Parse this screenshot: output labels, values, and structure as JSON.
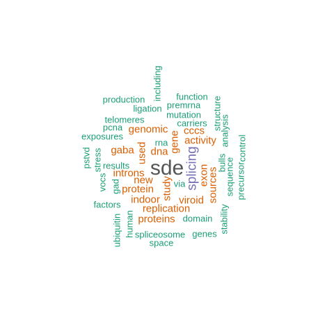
{
  "colors": {
    "top": "#555555",
    "tier1": "#7570B3",
    "tier2": "#D95F02",
    "tier3": "#1B9E77"
  },
  "words": [
    {
      "text": "sde",
      "weight": 4,
      "color": "#555555",
      "rotated": false
    },
    {
      "text": "splicing",
      "weight": 3,
      "color": "#7570B3",
      "rotated": true
    },
    {
      "text": "genomic",
      "weight": 2,
      "color": "#D95F02",
      "rotated": false
    },
    {
      "text": "dna",
      "weight": 2,
      "color": "#D95F02",
      "rotated": false
    },
    {
      "text": "gene",
      "weight": 2,
      "color": "#D95F02",
      "rotated": true
    },
    {
      "text": "used",
      "weight": 2,
      "color": "#D95F02",
      "rotated": true
    },
    {
      "text": "cccs",
      "weight": 2,
      "color": "#D95F02",
      "rotated": false
    },
    {
      "text": "activity",
      "weight": 2,
      "color": "#D95F02",
      "rotated": false
    },
    {
      "text": "gaba",
      "weight": 2,
      "color": "#D95F02",
      "rotated": false
    },
    {
      "text": "introns",
      "weight": 2,
      "color": "#D95F02",
      "rotated": false
    },
    {
      "text": "new",
      "weight": 2,
      "color": "#D95F02",
      "rotated": false
    },
    {
      "text": "protein",
      "weight": 2,
      "color": "#D95F02",
      "rotated": false
    },
    {
      "text": "study",
      "weight": 2,
      "color": "#D95F02",
      "rotated": true
    },
    {
      "text": "exon",
      "weight": 2,
      "color": "#D95F02",
      "rotated": true
    },
    {
      "text": "sources",
      "weight": 2,
      "color": "#D95F02",
      "rotated": true
    },
    {
      "text": "indoor",
      "weight": 2,
      "color": "#D95F02",
      "rotated": false
    },
    {
      "text": "viroid",
      "weight": 2,
      "color": "#D95F02",
      "rotated": false
    },
    {
      "text": "replication",
      "weight": 2,
      "color": "#D95F02",
      "rotated": false
    },
    {
      "text": "proteins",
      "weight": 2,
      "color": "#D95F02",
      "rotated": false
    },
    {
      "text": "including",
      "weight": 1,
      "color": "#1B9E77",
      "rotated": true
    },
    {
      "text": "production",
      "weight": 1,
      "color": "#1B9E77",
      "rotated": false
    },
    {
      "text": "function",
      "weight": 1,
      "color": "#1B9E77",
      "rotated": false
    },
    {
      "text": "premrna",
      "weight": 1,
      "color": "#1B9E77",
      "rotated": false
    },
    {
      "text": "ligation",
      "weight": 1,
      "color": "#1B9E77",
      "rotated": false
    },
    {
      "text": "mutation",
      "weight": 1,
      "color": "#1B9E77",
      "rotated": false
    },
    {
      "text": "structure",
      "weight": 1,
      "color": "#1B9E77",
      "rotated": true
    },
    {
      "text": "telomeres",
      "weight": 1,
      "color": "#1B9E77",
      "rotated": false
    },
    {
      "text": "carriers",
      "weight": 1,
      "color": "#1B9E77",
      "rotated": false
    },
    {
      "text": "pcna",
      "weight": 1,
      "color": "#1B9E77",
      "rotated": false
    },
    {
      "text": "analysis",
      "weight": 1,
      "color": "#1B9E77",
      "rotated": true
    },
    {
      "text": "exposures",
      "weight": 1,
      "color": "#1B9E77",
      "rotated": false
    },
    {
      "text": "rna",
      "weight": 1,
      "color": "#1B9E77",
      "rotated": false
    },
    {
      "text": "control",
      "weight": 1,
      "color": "#1B9E77",
      "rotated": true
    },
    {
      "text": "pstvd",
      "weight": 1,
      "color": "#1B9E77",
      "rotated": true
    },
    {
      "text": "stress",
      "weight": 1,
      "color": "#1B9E77",
      "rotated": true
    },
    {
      "text": "bulls",
      "weight": 1,
      "color": "#1B9E77",
      "rotated": true
    },
    {
      "text": "results",
      "weight": 1,
      "color": "#1B9E77",
      "rotated": false
    },
    {
      "text": "sequence",
      "weight": 1,
      "color": "#1B9E77",
      "rotated": true
    },
    {
      "text": "vocs",
      "weight": 1,
      "color": "#1B9E77",
      "rotated": true
    },
    {
      "text": "gad",
      "weight": 1,
      "color": "#1B9E77",
      "rotated": true
    },
    {
      "text": "via",
      "weight": 1,
      "color": "#1B9E77",
      "rotated": false
    },
    {
      "text": "precursor",
      "weight": 1,
      "color": "#1B9E77",
      "rotated": true
    },
    {
      "text": "factors",
      "weight": 1,
      "color": "#1B9E77",
      "rotated": false
    },
    {
      "text": "stability",
      "weight": 1,
      "color": "#1B9E77",
      "rotated": true
    },
    {
      "text": "human",
      "weight": 1,
      "color": "#1B9E77",
      "rotated": true
    },
    {
      "text": "domain",
      "weight": 1,
      "color": "#1B9E77",
      "rotated": false
    },
    {
      "text": "ubiquitin",
      "weight": 1,
      "color": "#1B9E77",
      "rotated": true
    },
    {
      "text": "spliceosome",
      "weight": 1,
      "color": "#1B9E77",
      "rotated": false
    },
    {
      "text": "genes",
      "weight": 1,
      "color": "#1B9E77",
      "rotated": false
    },
    {
      "text": "space",
      "weight": 1,
      "color": "#1B9E77",
      "rotated": false
    }
  ]
}
